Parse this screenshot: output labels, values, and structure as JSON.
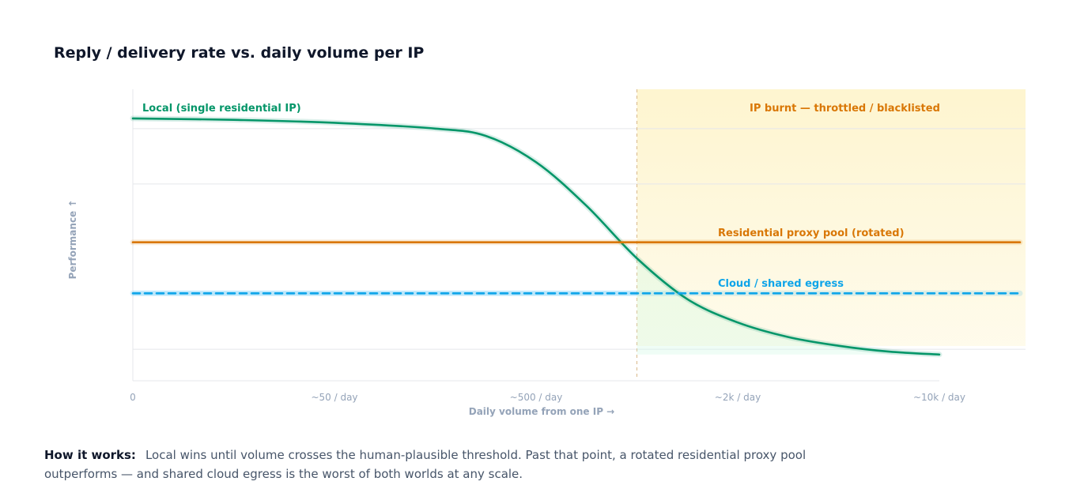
{
  "chart_data": {
    "type": "line",
    "title": "Reply / delivery rate vs. daily volume per IP",
    "xlabel": "Daily volume from one IP →",
    "ylabel": "Performance ↑",
    "x_tick_labels": [
      "0",
      "~50 / day",
      "~500 / day",
      "~2k / day",
      "~10k / day"
    ],
    "x_tick_positions": [
      0,
      1,
      2,
      3,
      4
    ],
    "xlim": [
      0,
      4
    ],
    "ylim": [
      0,
      1
    ],
    "grid": true,
    "threshold": {
      "x": 2.5,
      "label": "IP burnt — throttled / blacklisted",
      "color": "#d97706",
      "fill": "#fef3c7"
    },
    "series": [
      {
        "name": "Local (single residential IP)",
        "style": "solid",
        "color": "#059669",
        "x": [
          0,
          0.5,
          1.0,
          1.5,
          1.75,
          2.0,
          2.25,
          2.5,
          2.75,
          3.0,
          3.25,
          3.5,
          3.75,
          4.0
        ],
        "y": [
          0.9,
          0.895,
          0.885,
          0.865,
          0.84,
          0.75,
          0.6,
          0.42,
          0.28,
          0.2,
          0.15,
          0.12,
          0.1,
          0.09
        ]
      },
      {
        "name": "Residential proxy pool (rotated)",
        "style": "solid",
        "color": "#d97706",
        "x": [
          0,
          4.4
        ],
        "y": [
          0.475,
          0.475
        ]
      },
      {
        "name": "Cloud / shared egress",
        "style": "dashed",
        "color": "#0ea5e9",
        "x": [
          0,
          4.4
        ],
        "y": [
          0.3,
          0.3
        ]
      }
    ]
  },
  "footnote": {
    "lead": "How it works:",
    "text": "Local wins until volume crosses the human-plausible threshold. Past that point, a rotated residential proxy pool outperforms — and shared cloud egress is the worst of both worlds at any scale."
  }
}
